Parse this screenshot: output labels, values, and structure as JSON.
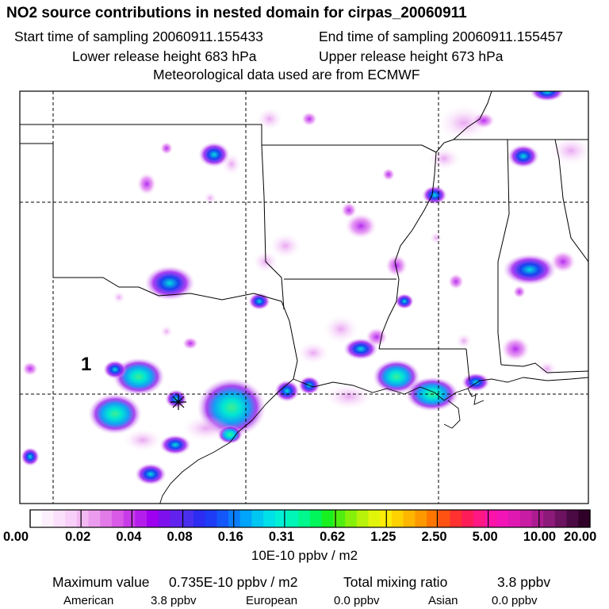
{
  "header": {
    "title": "NO2 source contributions in nested domain for cirpas_20060911",
    "start_sampling": "Start time of sampling 20060911.155433",
    "end_sampling": "End time of sampling 20060911.155457",
    "lower_release": "Lower release height  683 hPa",
    "upper_release": "Upper release height  673 hPa",
    "met_data": "Meteorological data used are from ECMWF"
  },
  "map": {
    "release_marker": "1",
    "source_location_icon": "asterisk-icon"
  },
  "colorbar": {
    "tick_labels": [
      "0.00",
      "0.02",
      "0.04",
      "0.08",
      "0.16",
      "0.31",
      "0.62",
      "1.25",
      "2.50",
      "5.00",
      "10.00",
      "20.00"
    ],
    "colors": [
      "#ffffff",
      "#fdf0fd",
      "#fbe0fb",
      "#f8cff8",
      "#f2b8f2",
      "#ec9cee",
      "#e27ae8",
      "#d85ae6",
      "#c83ce8",
      "#b41eec",
      "#9e00f0",
      "#7e10ee",
      "#6222ee",
      "#4a30ee",
      "#2c2cf2",
      "#1e3cf6",
      "#1458fa",
      "#0a7efa",
      "#00a4fa",
      "#00c6f2",
      "#00e0e8",
      "#00f0d6",
      "#00f6b6",
      "#00f88c",
      "#00f65a",
      "#18f020",
      "#50ee10",
      "#86f00a",
      "#b8f20a",
      "#e2f40a",
      "#fcec08",
      "#fed200",
      "#feb600",
      "#fe9800",
      "#fe7600",
      "#fe5212",
      "#fe3030",
      "#fe1c58",
      "#fe1884",
      "#fc14a8",
      "#f214b6",
      "#e018b2",
      "#c81ca4",
      "#ac1c90",
      "#8c1a78",
      "#6c1260",
      "#4c0a44",
      "#300028"
    ],
    "units": "10E-10 ppbv / m2"
  },
  "summary": {
    "max_label": "Maximum value",
    "max_value": "0.735E-10 ppbv / m2",
    "total_label": "Total mixing ratio",
    "total_value": "3.8 ppbv",
    "sources": [
      {
        "name": "American",
        "value": "3.8 ppbv"
      },
      {
        "name": "European",
        "value": "0.0 ppbv"
      },
      {
        "name": "Asian",
        "value": "0.0 ppbv"
      }
    ]
  }
}
